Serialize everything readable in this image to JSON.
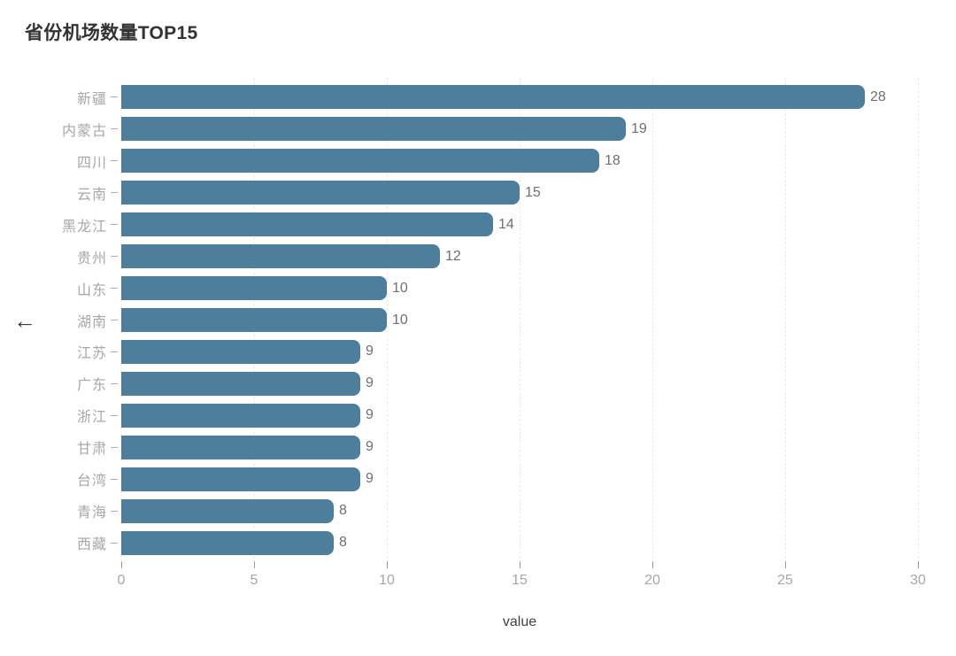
{
  "header": {
    "title": "省份机场数量TOP15",
    "back_icon": "←"
  },
  "chart_data": {
    "type": "bar",
    "orientation": "horizontal",
    "title": "省份机场数量TOP15",
    "categories": [
      "新疆",
      "内蒙古",
      "四川",
      "云南",
      "黑龙江",
      "贵州",
      "山东",
      "湖南",
      "江苏",
      "广东",
      "浙江",
      "甘肃",
      "台湾",
      "青海",
      "西藏"
    ],
    "values": [
      28,
      19,
      18,
      15,
      14,
      12,
      10,
      10,
      9,
      9,
      9,
      9,
      9,
      8,
      8
    ],
    "xlabel": "value",
    "ylabel": "",
    "xlim": [
      0,
      30
    ],
    "x_ticks": [
      0,
      5,
      10,
      15,
      20,
      25,
      30
    ],
    "bar_color": "#4d7f9d",
    "value_label_color": "#6f6f6f",
    "axis_label_color": "#a7a7a7",
    "grid": true,
    "grid_style": "dashed-vertical",
    "value_labels_shown": true,
    "legend": "none"
  }
}
